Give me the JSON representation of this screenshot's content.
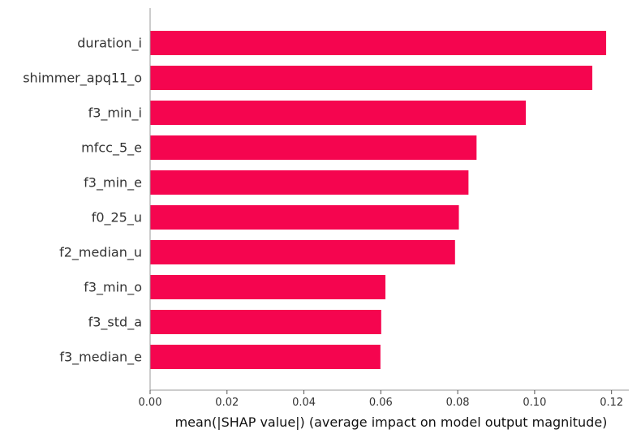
{
  "chart_data": {
    "type": "bar",
    "orientation": "horizontal",
    "categories": [
      "duration_i",
      "shimmer_apq11_o",
      "f3_min_i",
      "mfcc_5_e",
      "f3_min_e",
      "f0_25_u",
      "f2_median_u",
      "f3_min_o",
      "f3_std_a",
      "f3_median_e"
    ],
    "values": [
      0.1186,
      0.115,
      0.0977,
      0.0849,
      0.0828,
      0.0803,
      0.0793,
      0.0612,
      0.0601,
      0.0599
    ],
    "xlabel": "mean(|SHAP value|) (average impact on model output magnitude)",
    "ylabel": "",
    "xlim": [
      0,
      0.1245
    ],
    "xticks": [
      0.0,
      0.02,
      0.04,
      0.06,
      0.08,
      0.1,
      0.12
    ],
    "xtick_labels": [
      "0.00",
      "0.02",
      "0.04",
      "0.06",
      "0.08",
      "0.10",
      "0.12"
    ],
    "grid": false,
    "legend": "none",
    "bar_color": "#f5054f",
    "axis_color": "#999999"
  }
}
